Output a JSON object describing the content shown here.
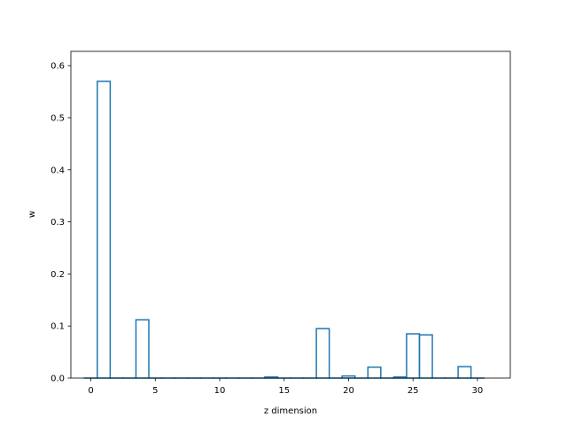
{
  "chart_data": {
    "type": "bar",
    "style": "step-outline",
    "xlabel": "z dimension",
    "ylabel": "w",
    "xlim": [
      -1.55,
      32.55
    ],
    "ylim": [
      0,
      0.6275
    ],
    "xticks": [
      0,
      5,
      10,
      15,
      20,
      25,
      30
    ],
    "xtick_labels": [
      "0",
      "5",
      "10",
      "15",
      "20",
      "25",
      "30"
    ],
    "yticks": [
      0.0,
      0.1,
      0.2,
      0.3,
      0.4,
      0.5,
      0.6
    ],
    "ytick_labels": [
      "0.0",
      "0.1",
      "0.2",
      "0.3",
      "0.4",
      "0.5",
      "0.6"
    ],
    "grid": false,
    "color": "#1f77b4",
    "x": [
      0,
      1,
      2,
      3,
      4,
      5,
      6,
      7,
      8,
      9,
      10,
      11,
      12,
      13,
      14,
      15,
      16,
      17,
      18,
      19,
      20,
      21,
      22,
      23,
      24,
      25,
      26,
      27,
      28,
      29,
      30
    ],
    "values": [
      0.0,
      0.57,
      0.0,
      0.0,
      0.112,
      0.0,
      0.0,
      0.0,
      0.0,
      0.0,
      0.0,
      0.0,
      0.0,
      0.0,
      0.002,
      0.0,
      0.0,
      0.0,
      0.095,
      0.0,
      0.004,
      0.0,
      0.021,
      0.0,
      0.002,
      0.085,
      0.083,
      0.0,
      0.0,
      0.022,
      0.0
    ]
  }
}
